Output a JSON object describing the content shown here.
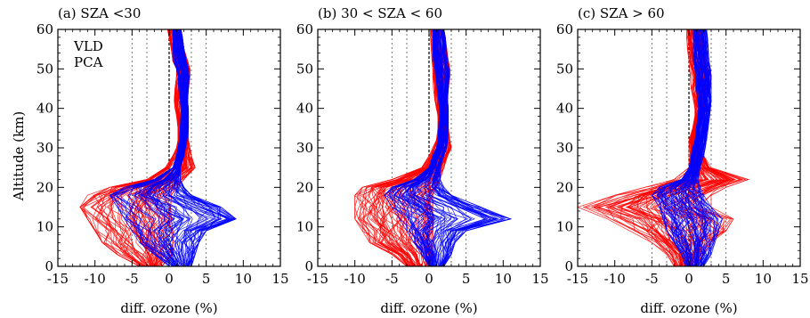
{
  "figure": {
    "ylabel": "Altitude (km)",
    "legend": [
      {
        "name": "VLD",
        "color": "#ff0000"
      },
      {
        "name": "PCA",
        "color": "#0000ff"
      }
    ],
    "colors": {
      "vld": "#ff0000",
      "pca": "#0000ff",
      "grid": "#555555",
      "axis": "#000000"
    }
  },
  "chart_data": [
    {
      "type": "line",
      "title": "(a) SZA <30",
      "xlabel": "diff. ozone (%)",
      "ylabel": "Altitude (km)",
      "xlim": [
        -15,
        15
      ],
      "ylim": [
        0,
        60
      ],
      "xticks": [
        -15,
        -10,
        -5,
        0,
        5,
        10,
        15
      ],
      "yticks": [
        0,
        10,
        20,
        30,
        40,
        50,
        60
      ],
      "vertical_reference_lines": [
        -5,
        -3,
        0,
        3,
        5
      ],
      "legend": [
        "VLD",
        "PCA"
      ],
      "series": [
        {
          "name": "VLD",
          "altitude": [
            0,
            3,
            6,
            9,
            12,
            15,
            18,
            20,
            22,
            25,
            28,
            30,
            32,
            35,
            38,
            40,
            42,
            45,
            48,
            50,
            52,
            55,
            58,
            60
          ],
          "envelope_min": [
            -4,
            -7,
            -9,
            -10,
            -11,
            -12,
            -11,
            -8,
            -3,
            -0.5,
            0.5,
            1.0,
            1.2,
            1.2,
            1.0,
            0.8,
            0.7,
            0.8,
            1.0,
            1.0,
            0.5,
            0.3,
            0.0,
            -0.2
          ],
          "envelope_max": [
            -1,
            0.5,
            0.5,
            0.5,
            0.3,
            0.2,
            0.3,
            1.0,
            2.0,
            3.5,
            3.0,
            2.8,
            2.6,
            2.6,
            2.6,
            2.5,
            2.4,
            2.6,
            2.8,
            2.8,
            2.5,
            2.0,
            1.8,
            1.6
          ]
        },
        {
          "name": "PCA",
          "altitude": [
            0,
            3,
            6,
            9,
            12,
            15,
            18,
            20,
            22,
            25,
            28,
            30,
            32,
            35,
            38,
            40,
            42,
            45,
            48,
            50,
            52,
            55,
            58,
            60
          ],
          "envelope_min": [
            0,
            -2,
            -4,
            -5,
            -6,
            -7,
            -8,
            -6,
            -2,
            0.5,
            1.0,
            1.2,
            1.4,
            1.5,
            1.6,
            1.6,
            1.5,
            1.3,
            1.2,
            1.0,
            0.6,
            0.5,
            0.5,
            0.5
          ],
          "envelope_max": [
            3,
            3.5,
            4,
            5,
            9,
            7,
            3,
            2,
            1.5,
            1.5,
            2.0,
            2.2,
            2.4,
            2.6,
            2.6,
            2.6,
            2.5,
            2.6,
            2.7,
            2.6,
            2.3,
            2.0,
            1.8,
            1.6
          ]
        }
      ]
    },
    {
      "type": "line",
      "title": "(b) 30 < SZA < 60",
      "xlabel": "diff. ozone (%)",
      "ylabel": "Altitude (km)",
      "xlim": [
        -15,
        15
      ],
      "ylim": [
        0,
        60
      ],
      "xticks": [
        -15,
        -10,
        -5,
        0,
        5,
        10,
        15
      ],
      "yticks": [
        0,
        10,
        20,
        30,
        40,
        50,
        60
      ],
      "vertical_reference_lines": [
        -5,
        -3,
        0,
        3,
        5
      ],
      "series": [
        {
          "name": "VLD",
          "altitude": [
            0,
            3,
            6,
            9,
            12,
            15,
            18,
            20,
            22,
            25,
            28,
            30,
            32,
            35,
            38,
            40,
            42,
            45,
            48,
            50,
            52,
            55,
            58,
            60
          ],
          "envelope_min": [
            -3,
            -5,
            -8,
            -9,
            -10,
            -10,
            -10,
            -9,
            -5,
            -1,
            0,
            0.5,
            1.0,
            1.2,
            1.2,
            1.0,
            0.8,
            0.6,
            0.5,
            0.5,
            0.4,
            0.3,
            0.2,
            0.2
          ],
          "envelope_max": [
            0,
            0.5,
            0.5,
            0.5,
            0.5,
            0.5,
            0.5,
            1.0,
            1.5,
            2.0,
            2.5,
            3.0,
            2.8,
            2.6,
            2.6,
            2.4,
            2.4,
            2.6,
            2.8,
            2.8,
            2.6,
            2.4,
            2.2,
            2.0
          ]
        },
        {
          "name": "PCA",
          "altitude": [
            0,
            3,
            6,
            9,
            12,
            15,
            18,
            20,
            22,
            25,
            28,
            30,
            32,
            35,
            38,
            40,
            42,
            45,
            48,
            50,
            52,
            55,
            58,
            60
          ],
          "envelope_min": [
            0,
            -1,
            -2,
            -3,
            -4,
            -5,
            -6,
            -5,
            -2,
            0,
            0.5,
            1.0,
            1.2,
            1.3,
            1.4,
            1.4,
            1.3,
            1.1,
            0.9,
            0.8,
            0.6,
            0.5,
            0.5,
            0.5
          ],
          "envelope_max": [
            2,
            3,
            3.5,
            5,
            11,
            7,
            3,
            2,
            1.5,
            1.5,
            2.0,
            2.4,
            2.5,
            2.6,
            2.6,
            2.6,
            2.5,
            2.6,
            2.7,
            2.7,
            2.5,
            2.3,
            2.2,
            2.0
          ]
        }
      ]
    },
    {
      "type": "line",
      "title": "(c) SZA > 60",
      "xlabel": "diff. ozone (%)",
      "ylabel": "Altitude (km)",
      "xlim": [
        -15,
        15
      ],
      "ylim": [
        0,
        60
      ],
      "xticks": [
        -15,
        -10,
        -5,
        0,
        5,
        10,
        15
      ],
      "yticks": [
        0,
        10,
        20,
        30,
        40,
        50,
        60
      ],
      "vertical_reference_lines": [
        -5,
        -3,
        0,
        3,
        5
      ],
      "series": [
        {
          "name": "VLD",
          "altitude": [
            0,
            3,
            6,
            9,
            12,
            15,
            18,
            20,
            22,
            25,
            28,
            30,
            32,
            35,
            38,
            40,
            42,
            45,
            48,
            50,
            52,
            55,
            58,
            60
          ],
          "envelope_min": [
            -2,
            -3,
            -5,
            -8,
            -11,
            -15,
            -10,
            -6,
            -2,
            0,
            0,
            0,
            0,
            0.5,
            0.8,
            0.8,
            0.6,
            0.3,
            0.2,
            0.1,
            0,
            -0.2,
            -0.3,
            -0.3
          ],
          "envelope_max": [
            1,
            2,
            3,
            5,
            6,
            3,
            3,
            5,
            8,
            3,
            2,
            1.5,
            1.2,
            1.5,
            2.0,
            2.3,
            2.5,
            2.8,
            3.0,
            2.8,
            2.5,
            2.3,
            2.0,
            1.8
          ]
        },
        {
          "name": "PCA",
          "altitude": [
            0,
            3,
            6,
            9,
            12,
            15,
            18,
            20,
            22,
            25,
            28,
            30,
            32,
            35,
            38,
            40,
            42,
            45,
            48,
            50,
            52,
            55,
            58,
            60
          ],
          "envelope_min": [
            -0.5,
            -1,
            -2,
            -3,
            -3.5,
            -4,
            -5,
            -4,
            -1,
            0,
            0.3,
            0.5,
            0.8,
            1.0,
            1.2,
            1.3,
            1.2,
            1.0,
            0.9,
            0.8,
            0.6,
            0.6,
            0.6,
            0.6
          ],
          "envelope_max": [
            2,
            3,
            3.5,
            4,
            4.5,
            3,
            2,
            1.5,
            1.2,
            1.5,
            2.0,
            2.2,
            2.4,
            2.6,
            2.8,
            2.9,
            3.0,
            3.0,
            3.0,
            2.9,
            2.7,
            2.6,
            2.5,
            2.4
          ]
        }
      ]
    }
  ]
}
